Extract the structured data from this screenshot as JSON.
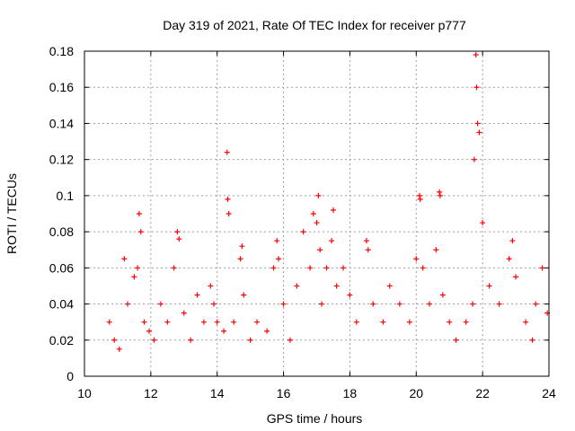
{
  "chart_data": {
    "type": "scatter",
    "title": "Day 319 of 2021, Rate Of TEC Index for receiver p777",
    "xlabel": "GPS time / hours",
    "ylabel": "ROTI / TECUs",
    "xlim": [
      10,
      24
    ],
    "ylim": [
      0,
      0.18
    ],
    "x_ticks": [
      "10",
      "12",
      "14",
      "16",
      "18",
      "20",
      "22",
      "24"
    ],
    "y_ticks": [
      "0",
      "0.02",
      "0.04",
      "0.06",
      "0.08",
      "0.1",
      "0.12",
      "0.14",
      "0.16",
      "0.18"
    ],
    "grid": true,
    "marker": "plus",
    "color": "#ff0000",
    "series": [
      {
        "name": "ROTI",
        "x": [
          10.75,
          10.9,
          11.05,
          11.2,
          11.3,
          11.5,
          11.6,
          11.65,
          11.7,
          11.8,
          11.95,
          12.1,
          12.3,
          12.5,
          12.7,
          12.8,
          12.85,
          13.0,
          13.2,
          13.4,
          13.6,
          13.8,
          13.9,
          14.0,
          14.2,
          14.3,
          14.32,
          14.35,
          14.5,
          14.7,
          14.75,
          14.8,
          15.0,
          15.2,
          15.5,
          15.7,
          15.8,
          15.85,
          16.0,
          16.2,
          16.4,
          16.6,
          16.8,
          16.9,
          17.0,
          17.05,
          17.1,
          17.15,
          17.3,
          17.45,
          17.5,
          17.6,
          17.8,
          18.0,
          18.2,
          18.5,
          18.55,
          18.7,
          19.0,
          19.2,
          19.5,
          19.8,
          20.0,
          20.1,
          20.12,
          20.2,
          20.4,
          20.6,
          20.7,
          20.72,
          20.8,
          21.0,
          21.2,
          21.5,
          21.7,
          21.75,
          21.8,
          21.82,
          21.85,
          21.9,
          22.0,
          22.2,
          22.5,
          22.8,
          22.9,
          23.0,
          23.3,
          23.5,
          23.6,
          23.8,
          23.95
        ],
        "y": [
          0.03,
          0.02,
          0.015,
          0.065,
          0.04,
          0.055,
          0.06,
          0.09,
          0.08,
          0.03,
          0.025,
          0.02,
          0.04,
          0.03,
          0.06,
          0.08,
          0.076,
          0.035,
          0.02,
          0.045,
          0.03,
          0.05,
          0.04,
          0.03,
          0.025,
          0.124,
          0.098,
          0.09,
          0.03,
          0.065,
          0.072,
          0.045,
          0.02,
          0.03,
          0.025,
          0.06,
          0.075,
          0.065,
          0.04,
          0.02,
          0.05,
          0.08,
          0.06,
          0.09,
          0.085,
          0.1,
          0.07,
          0.04,
          0.06,
          0.075,
          0.092,
          0.05,
          0.06,
          0.045,
          0.03,
          0.075,
          0.07,
          0.04,
          0.03,
          0.05,
          0.04,
          0.03,
          0.065,
          0.1,
          0.098,
          0.06,
          0.04,
          0.07,
          0.102,
          0.1,
          0.045,
          0.03,
          0.02,
          0.03,
          0.04,
          0.12,
          0.178,
          0.16,
          0.14,
          0.135,
          0.085,
          0.05,
          0.04,
          0.065,
          0.075,
          0.055,
          0.03,
          0.02,
          0.04,
          0.06,
          0.035
        ]
      }
    ]
  }
}
